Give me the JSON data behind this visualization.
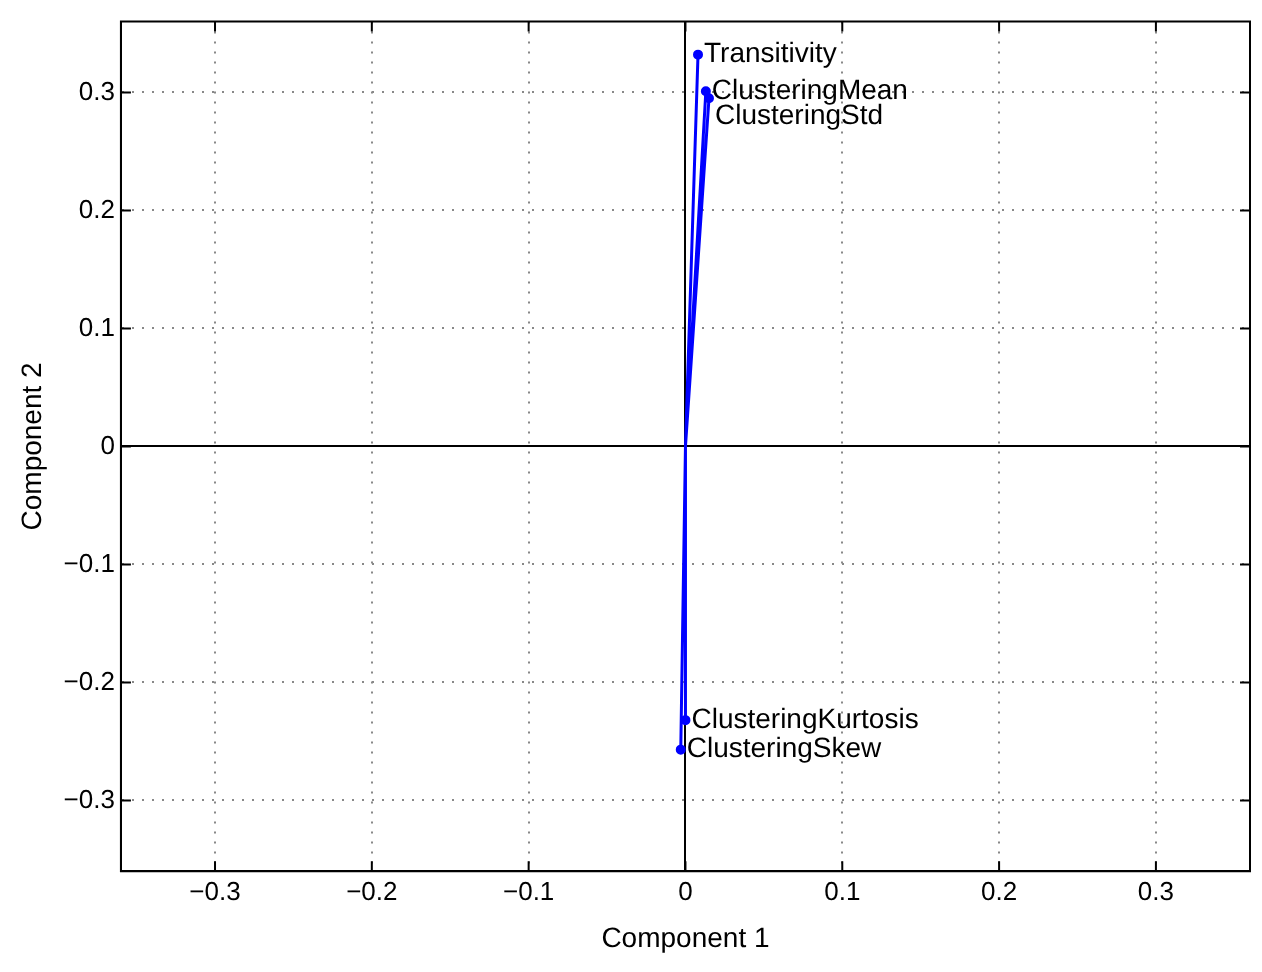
{
  "chart_data": {
    "type": "line",
    "xlabel": "Component 1",
    "ylabel": "Component 2",
    "xlim": [
      -0.36,
      0.36
    ],
    "ylim": [
      -0.36,
      0.36
    ],
    "xticks": [
      {
        "value": -0.3,
        "label": "−0.3"
      },
      {
        "value": -0.2,
        "label": "−0.2"
      },
      {
        "value": -0.1,
        "label": "−0.1"
      },
      0,
      0.1,
      0.2,
      0.3
    ],
    "yticks": [
      {
        "value": -0.3,
        "label": "−0.3"
      },
      {
        "value": -0.2,
        "label": "−0.2"
      },
      {
        "value": -0.1,
        "label": "−0.1"
      },
      0,
      0.1,
      0.2,
      0.3
    ],
    "grid": true,
    "line_style": "solid",
    "series": [
      {
        "color": "#0000ff",
        "x": [
          0,
          0.008,
          0,
          0.013,
          0,
          0.015,
          0,
          0.0,
          0,
          -0.003
        ],
        "values": [
          0,
          0.332,
          0,
          0.301,
          0,
          0.295,
          0,
          -0.232,
          0,
          -0.257
        ]
      },
      {
        "type": "scatter",
        "color": "#0000ff",
        "marker": "circle",
        "x": [
          0.008,
          0.013,
          0.015,
          0.0,
          -0.003
        ],
        "values": [
          0.332,
          0.301,
          0.295,
          -0.232,
          -0.257
        ]
      }
    ],
    "annotations": [
      {
        "text": "Transitivity",
        "x": 0.008,
        "y": 0.332
      },
      {
        "text": "ClusteringMean",
        "x": 0.013,
        "y": 0.301
      },
      {
        "text": "ClusteringStd",
        "x": 0.015,
        "y": 0.28
      },
      {
        "text": "ClusteringKurtosis",
        "x": 0.0,
        "y": -0.232
      },
      {
        "text": "ClusteringSkew",
        "x": -0.003,
        "y": -0.257
      }
    ]
  }
}
